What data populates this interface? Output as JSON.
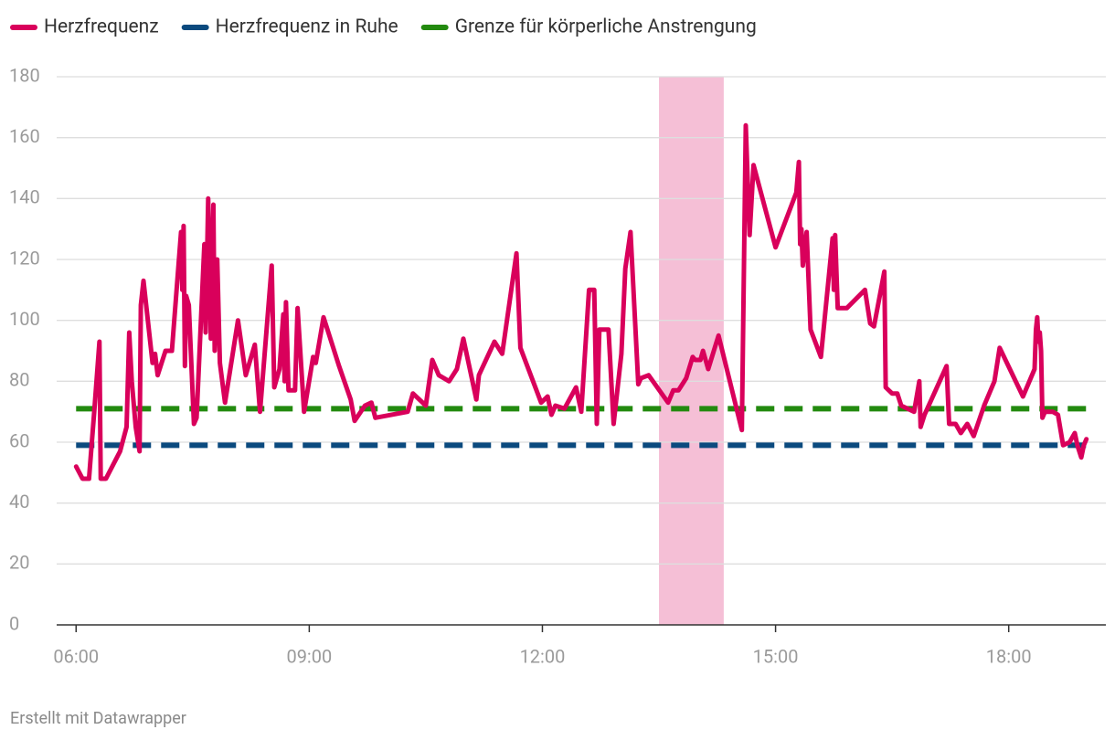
{
  "chart_data": {
    "type": "line",
    "x": [
      "06:00",
      "06:05",
      "06:10",
      "06:14",
      "06:18",
      "06:19",
      "06:23",
      "06:34",
      "06:39",
      "06:41",
      "06:43",
      "06:46",
      "06:49",
      "06:50",
      "06:52",
      "06:59",
      "07:01",
      "07:03",
      "07:09",
      "07:14",
      "07:21",
      "07:22",
      "07:23",
      "07:24",
      "07:25",
      "07:27",
      "07:31",
      "07:33",
      "07:39",
      "07:40",
      "07:42",
      "07:44",
      "07:46",
      "07:47",
      "07:49",
      "07:51",
      "07:55",
      "08:05",
      "08:11",
      "08:18",
      "08:22",
      "08:31",
      "08:33",
      "08:37",
      "08:40",
      "08:41",
      "08:42",
      "08:44",
      "08:49",
      "08:51",
      "08:56",
      "09:03",
      "09:05",
      "09:11",
      "09:23",
      "09:32",
      "09:35",
      "09:43",
      "09:48",
      "09:51",
      "10:16",
      "10:20",
      "10:30",
      "10:35",
      "10:40",
      "10:48",
      "10:54",
      "10:59",
      "11:09",
      "11:11",
      "11:23",
      "11:29",
      "11:40",
      "11:43",
      "11:59",
      "12:04",
      "12:07",
      "12:10",
      "12:17",
      "12:26",
      "12:30",
      "12:36",
      "12:40",
      "12:42",
      "12:44",
      "12:51",
      "12:55",
      "13:01",
      "13:04",
      "13:08",
      "13:14",
      "13:16",
      "13:22",
      "13:37",
      "13:41",
      "13:45",
      "13:51",
      "13:56",
      "13:58",
      "14:02",
      "14:04",
      "14:08",
      "14:16",
      "14:34",
      "14:37",
      "14:40",
      "14:43",
      "15:00",
      "15:16",
      "15:17",
      "15:18",
      "15:19",
      "15:20",
      "15:21",
      "15:24",
      "15:27",
      "15:35",
      "15:44",
      "15:45",
      "15:46",
      "15:48",
      "15:55",
      "16:09",
      "16:13",
      "16:16",
      "16:24",
      "16:25",
      "16:30",
      "16:34",
      "16:37",
      "16:47",
      "16:51",
      "16:52",
      "16:55",
      "17:12",
      "17:14",
      "17:19",
      "17:23",
      "17:28",
      "17:33",
      "17:41",
      "17:49",
      "17:53",
      "18:11",
      "18:20",
      "18:21",
      "18:22",
      "18:23",
      "18:24",
      "18:25",
      "18:26",
      "18:28",
      "18:34",
      "18:38",
      "18:42",
      "18:47",
      "18:51",
      "18:53",
      "18:56",
      "18:58",
      "19:00"
    ],
    "series": [
      {
        "name": "Herzfrequenz",
        "color": "#d9005b",
        "values": [
          52,
          48,
          48,
          70,
          93,
          48,
          48,
          57,
          65,
          96,
          80,
          65,
          57,
          105,
          113,
          86,
          89,
          82,
          90,
          90,
          129,
          110,
          131,
          85,
          108,
          105,
          66,
          68,
          125,
          96,
          140,
          94,
          138,
          90,
          120,
          86,
          73,
          100,
          82,
          92,
          70,
          118,
          78,
          84,
          102,
          80,
          106,
          77,
          77,
          104,
          70,
          88,
          86,
          101,
          85,
          74,
          67,
          72,
          73,
          68,
          70,
          76,
          72,
          87,
          82,
          80,
          84,
          94,
          74,
          82,
          93,
          89,
          122,
          91,
          73,
          75,
          69,
          72,
          71,
          78,
          70,
          110,
          110,
          66,
          97,
          97,
          66,
          89,
          117,
          129,
          79,
          81,
          82,
          73,
          77,
          77,
          81,
          88,
          87,
          87,
          90,
          84,
          95,
          64,
          164,
          128,
          151,
          124,
          142,
          147,
          152,
          125,
          130,
          118,
          129,
          97,
          88,
          127,
          110,
          128,
          104,
          104,
          110,
          99,
          98,
          116,
          78,
          76,
          76,
          72,
          70,
          80,
          65,
          69,
          85,
          66,
          66,
          63,
          66,
          62,
          72,
          80,
          91,
          75,
          84,
          97,
          101,
          93,
          96,
          90,
          68,
          70,
          70,
          69,
          59,
          60,
          63,
          59,
          55,
          59,
          61
        ]
      }
    ],
    "reference_lines": [
      {
        "name": "Herzfrequenz in Ruhe",
        "color": "#0b4a7e",
        "value": 59
      },
      {
        "name": "Grenze für körperliche Anstrengung",
        "color": "#238a0f",
        "value": 71
      }
    ],
    "highlight": {
      "from": "13:30",
      "to": "14:20",
      "color": "#f5bfd6"
    },
    "xlim": [
      "05:45",
      "19:15"
    ],
    "xticks": [
      "06:00",
      "09:00",
      "12:00",
      "15:00",
      "18:00"
    ],
    "ylim": [
      0,
      180
    ],
    "yticks": [
      0,
      20,
      40,
      60,
      80,
      100,
      120,
      140,
      160,
      180
    ],
    "grid": true,
    "note": "Erstellt mit Datawrapper"
  }
}
